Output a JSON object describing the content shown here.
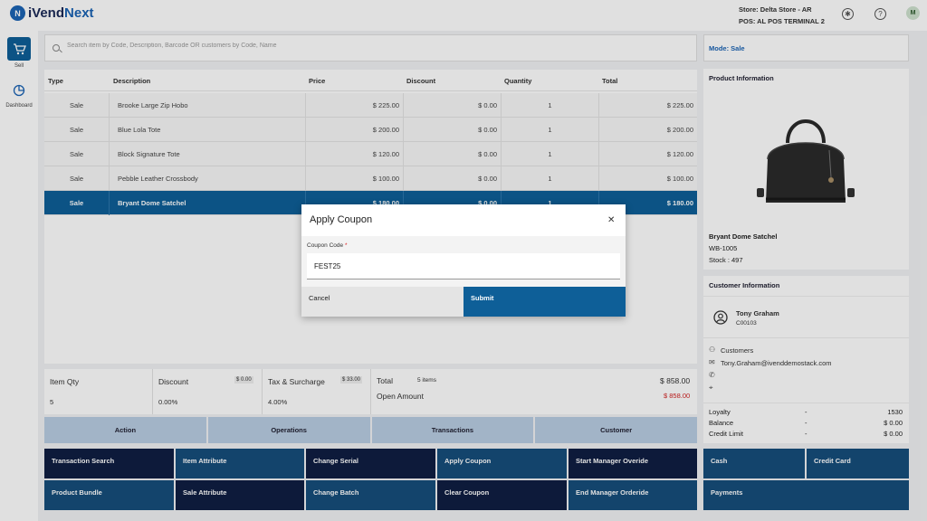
{
  "header": {
    "brand_a": "iVend",
    "brand_b": "Next",
    "store": "Store: Delta Store - AR",
    "pos": "POS: AL POS TERMINAL 2",
    "avatar": "M"
  },
  "sidebar": {
    "items": [
      {
        "label": "Sell",
        "icon": "cart-icon",
        "active": true
      },
      {
        "label": "Dashboard",
        "icon": "pie-chart-icon",
        "active": false
      }
    ]
  },
  "search": {
    "placeholder": "Search item by Code, Description, Barcode OR customers by Code, Name"
  },
  "table": {
    "headers": [
      "Type",
      "Description",
      "Price",
      "Discount",
      "Quantity",
      "Total"
    ],
    "rows": [
      {
        "type": "Sale",
        "description": "Brooke Large Zip Hobo",
        "price": "$ 225.00",
        "discount": "$ 0.00",
        "quantity": "1",
        "total": "$ 225.00"
      },
      {
        "type": "Sale",
        "description": "Blue Lola Tote",
        "price": "$ 200.00",
        "discount": "$ 0.00",
        "quantity": "1",
        "total": "$ 200.00"
      },
      {
        "type": "Sale",
        "description": "Block Signature Tote",
        "price": "$ 120.00",
        "discount": "$ 0.00",
        "quantity": "1",
        "total": "$ 120.00"
      },
      {
        "type": "Sale",
        "description": "Pebble Leather Crossbody",
        "price": "$ 100.00",
        "discount": "$ 0.00",
        "quantity": "1",
        "total": "$ 100.00"
      },
      {
        "type": "Sale",
        "description": "Bryant Dome Satchel",
        "price": "$ 180.00",
        "discount": "$ 0.00",
        "quantity": "1",
        "total": "$ 180.00",
        "selected": true
      }
    ]
  },
  "totals": {
    "item_qty_label": "Item Qty",
    "item_qty": "5",
    "discount_label": "Discount",
    "discount_amount": "$ 0.00",
    "discount_pct": "0.00%",
    "tax_label": "Tax & Surcharge",
    "tax_amount": "$ 33.00",
    "tax_pct": "4.00%",
    "total_label": "Total",
    "total_items": "5 items",
    "total_value": "$ 858.00",
    "open_label": "Open Amount",
    "open_value": "$ 858.00"
  },
  "tabs": [
    "Action",
    "Operations",
    "Transactions",
    "Customer"
  ],
  "actions": [
    [
      "Transaction Search",
      "Item Attribute",
      "Change Serial",
      "Apply Coupon",
      "Start Manager Overide"
    ],
    [
      "Product Bundle",
      "Sale Attribute",
      "Change Batch",
      "Clear Coupon",
      "End Manager Orderide"
    ]
  ],
  "mode": "Mode: Sale",
  "product": {
    "section_title": "Product Information",
    "name": "Bryant Dome Satchel",
    "code": "WB-1005",
    "stock": "Stock : 497"
  },
  "customer": {
    "section_title": "Customer Information",
    "name": "Tony Graham",
    "code": "C00103",
    "group": "Customers",
    "email": "Tony.Graham@ivenddemostack.com",
    "loyalty": [
      {
        "label": "Loyalty",
        "sep": "-",
        "value": "1530"
      },
      {
        "label": "Balance",
        "sep": "-",
        "value": "$ 0.00"
      },
      {
        "label": "Credit Limit",
        "sep": "-",
        "value": "$ 0.00"
      }
    ]
  },
  "payments": {
    "cash": "Cash",
    "credit_card": "Credit Card",
    "payments": "Payments"
  },
  "modal": {
    "title": "Apply Coupon",
    "field_label": "Coupon Code",
    "required_mark": "*",
    "field_value": "FEST25",
    "cancel": "Cancel",
    "submit": "Submit"
  },
  "colors": {
    "primary": "#0e5f98",
    "dark_action": "#0f1e43",
    "mid_action": "#164e7c",
    "tab": "#b9cde3",
    "negative": "#d22222"
  }
}
